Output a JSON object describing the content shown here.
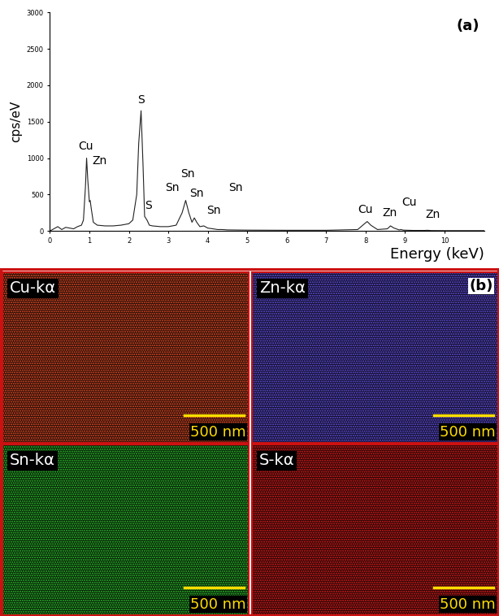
{
  "chart_data": {
    "type": "line",
    "panel_label": "(a)",
    "x_label": "Energy (keV)",
    "y_label": "cps/eV",
    "xlim": [
      0,
      11
    ],
    "xticks": [
      0,
      1,
      2,
      3,
      4,
      5,
      6,
      7,
      8,
      9,
      10
    ],
    "ylim": [
      0,
      3000
    ],
    "yticks": [
      0,
      500,
      1000,
      1500,
      2000,
      2500,
      3000
    ],
    "grid": false,
    "color": "#222222",
    "x": [
      0,
      0.1,
      0.2,
      0.3,
      0.4,
      0.5,
      0.6,
      0.7,
      0.8,
      0.85,
      0.9,
      0.93,
      0.96,
      1.0,
      1.02,
      1.05,
      1.1,
      1.2,
      1.4,
      1.6,
      1.8,
      2.0,
      2.1,
      2.2,
      2.25,
      2.31,
      2.36,
      2.4,
      2.46,
      2.52,
      2.6,
      2.8,
      3.0,
      3.2,
      3.35,
      3.44,
      3.52,
      3.6,
      3.66,
      3.72,
      3.8,
      3.9,
      4.0,
      4.13,
      4.25,
      4.37,
      4.5,
      5,
      6,
      7,
      7.8,
      7.95,
      8.04,
      8.13,
      8.3,
      8.55,
      8.63,
      8.72,
      8.85,
      8.9,
      8.95,
      9.2,
      9.5,
      9.57,
      9.65,
      10,
      10.5,
      11
    ],
    "values": [
      0,
      30,
      60,
      20,
      50,
      40,
      30,
      60,
      80,
      150,
      600,
      1000,
      700,
      400,
      420,
      300,
      120,
      80,
      70,
      70,
      80,
      100,
      150,
      500,
      1200,
      1650,
      900,
      200,
      150,
      80,
      70,
      60,
      60,
      80,
      250,
      420,
      250,
      120,
      180,
      120,
      60,
      70,
      40,
      30,
      20,
      20,
      15,
      12,
      10,
      10,
      20,
      90,
      130,
      80,
      20,
      30,
      70,
      40,
      15,
      20,
      12,
      8,
      8,
      10,
      6,
      5,
      5,
      5
    ],
    "annotations": [
      {
        "text": "Cu",
        "x": 0.9,
        "y": 1080
      },
      {
        "text": "Zn",
        "x": 1.25,
        "y": 880
      },
      {
        "text": "S",
        "x": 2.3,
        "y": 1720
      },
      {
        "text": "S",
        "x": 2.5,
        "y": 270
      },
      {
        "text": "Sn",
        "x": 3.1,
        "y": 520
      },
      {
        "text": "Sn",
        "x": 3.5,
        "y": 700
      },
      {
        "text": "Sn",
        "x": 3.72,
        "y": 440
      },
      {
        "text": "Sn",
        "x": 4.15,
        "y": 200
      },
      {
        "text": "Sn",
        "x": 4.7,
        "y": 520
      },
      {
        "text": "Cu",
        "x": 8.0,
        "y": 220
      },
      {
        "text": "Zn",
        "x": 8.6,
        "y": 170
      },
      {
        "text": "Cu",
        "x": 9.1,
        "y": 310
      },
      {
        "text": "Zn",
        "x": 9.7,
        "y": 150
      }
    ]
  },
  "element_maps": {
    "panel_label": "(b)",
    "maps": [
      {
        "label": "Cu-kα",
        "color": "#e8502a",
        "scale_bar": "500 nm"
      },
      {
        "label": "Zn-kα",
        "color": "#6655e8",
        "scale_bar": "500 nm"
      },
      {
        "label": "Sn-kα",
        "color": "#2fbf2f",
        "scale_bar": "500 nm"
      },
      {
        "label": "S-kα",
        "color": "#e02020",
        "scale_bar": "500 nm"
      }
    ]
  }
}
